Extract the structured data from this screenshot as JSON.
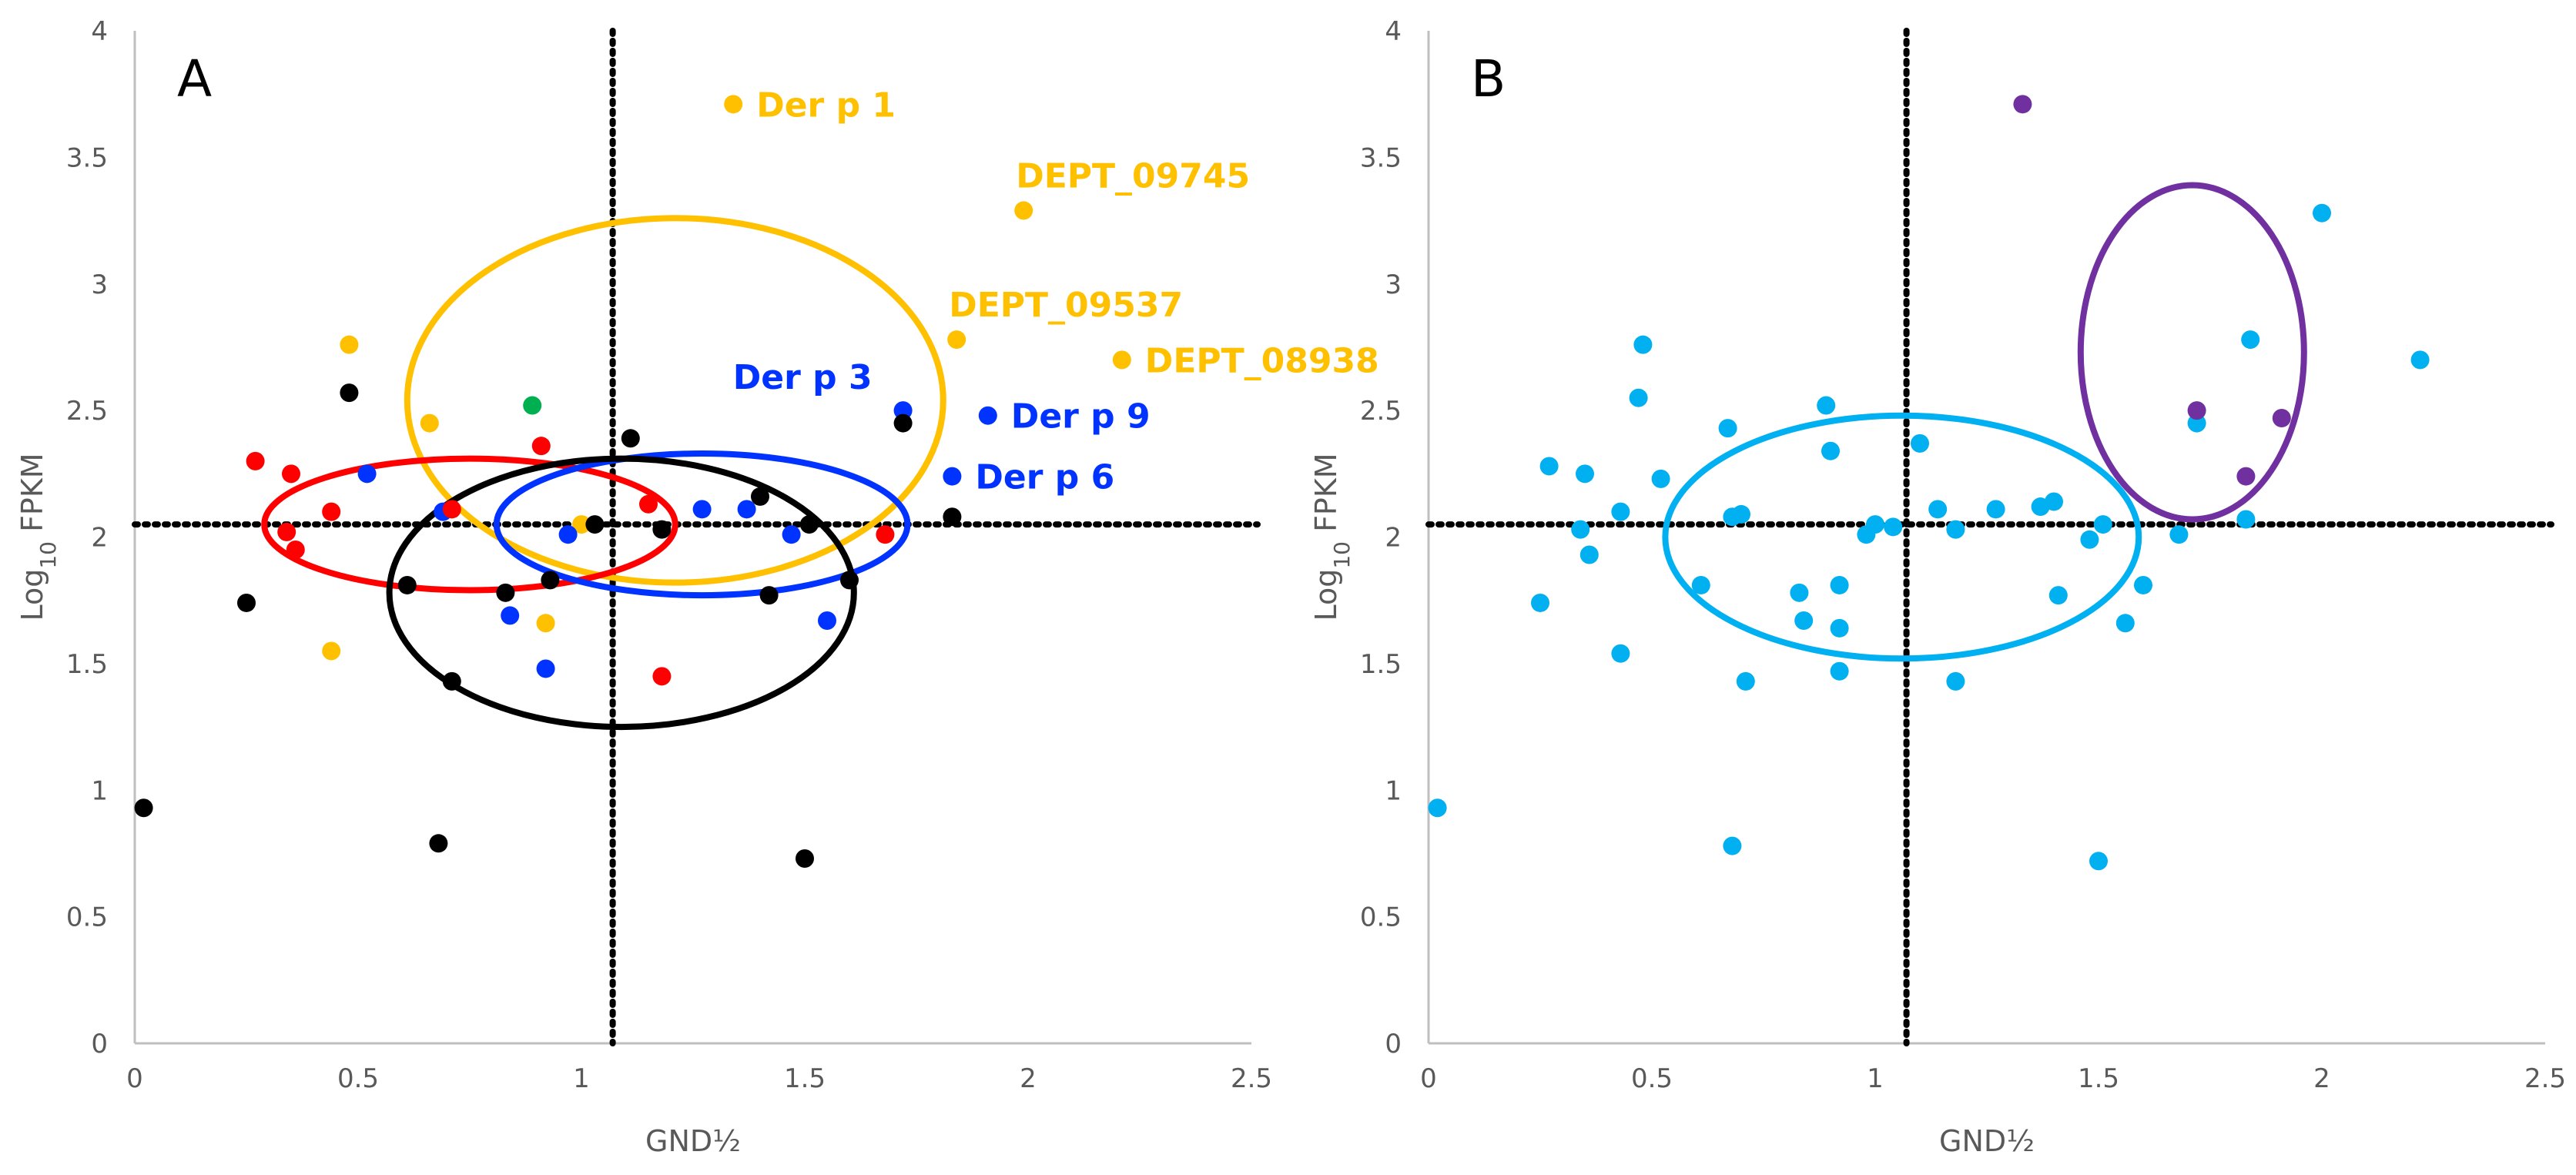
{
  "chart_data": [
    {
      "type": "scatter",
      "panel_label": "A",
      "xlabel": "GND½",
      "ylabel": "Log10 FPKM",
      "xlim": [
        0,
        2.5
      ],
      "ylim": [
        0,
        4
      ],
      "xticks": [
        "0",
        "0.5",
        "1",
        "1.5",
        "2",
        "2.5"
      ],
      "yticks": [
        "0",
        "0.5",
        "1",
        "1.5",
        "2",
        "2.5",
        "3",
        "3.5",
        "4"
      ],
      "grid": false,
      "reference_lines": {
        "x": 1.07,
        "y": 2.05
      },
      "colors": {
        "yellow": "#FFC000",
        "blue": "#0033FF",
        "red": "#FF0000",
        "black": "#000000",
        "green": "#00B050"
      },
      "series": [
        {
          "name": "yellow",
          "color": "#FFC000",
          "points": [
            [
              1.34,
              3.71
            ],
            [
              1.99,
              3.29
            ],
            [
              1.84,
              2.78
            ],
            [
              2.21,
              2.7
            ],
            [
              0.48,
              2.76
            ],
            [
              0.66,
              2.45
            ],
            [
              0.44,
              1.55
            ],
            [
              0.92,
              1.66
            ],
            [
              1.0,
              2.05
            ]
          ]
        },
        {
          "name": "blue",
          "color": "#0033FF",
          "points": [
            [
              1.72,
              2.5
            ],
            [
              1.91,
              2.48
            ],
            [
              1.83,
              2.24
            ],
            [
              0.52,
              2.25
            ],
            [
              0.69,
              2.1
            ],
            [
              0.97,
              2.01
            ],
            [
              1.27,
              2.11
            ],
            [
              1.37,
              2.11
            ],
            [
              1.47,
              2.01
            ],
            [
              0.84,
              1.69
            ],
            [
              0.92,
              1.48
            ],
            [
              1.55,
              1.67
            ]
          ]
        },
        {
          "name": "red",
          "color": "#FF0000",
          "points": [
            [
              0.27,
              2.3
            ],
            [
              0.35,
              2.25
            ],
            [
              0.44,
              2.1
            ],
            [
              0.34,
              2.02
            ],
            [
              0.36,
              1.95
            ],
            [
              0.71,
              2.11
            ],
            [
              0.91,
              2.36
            ],
            [
              1.15,
              2.13
            ],
            [
              1.68,
              2.01
            ],
            [
              1.18,
              1.45
            ]
          ]
        },
        {
          "name": "black",
          "color": "#000000",
          "points": [
            [
              0.48,
              2.57
            ],
            [
              1.11,
              2.39
            ],
            [
              1.72,
              2.45
            ],
            [
              1.83,
              2.08
            ],
            [
              1.4,
              2.16
            ],
            [
              1.51,
              2.05
            ],
            [
              1.03,
              2.05
            ],
            [
              1.18,
              2.03
            ],
            [
              0.61,
              1.81
            ],
            [
              0.83,
              1.78
            ],
            [
              0.93,
              1.83
            ],
            [
              1.42,
              1.77
            ],
            [
              1.6,
              1.83
            ],
            [
              0.25,
              1.74
            ],
            [
              0.71,
              1.43
            ],
            [
              0.02,
              0.93
            ],
            [
              0.68,
              0.79
            ],
            [
              1.5,
              0.73
            ]
          ]
        },
        {
          "name": "green",
          "color": "#00B050",
          "points": [
            [
              0.89,
              2.52
            ]
          ]
        }
      ],
      "ellipses": [
        {
          "color": "#FFC000",
          "cx": 1.21,
          "cy": 2.54,
          "rx": 0.6,
          "ry": 0.72
        },
        {
          "color": "#FF0000",
          "cx": 0.75,
          "cy": 2.05,
          "rx": 0.46,
          "ry": 0.26
        },
        {
          "color": "#0033FF",
          "cx": 1.27,
          "cy": 2.05,
          "rx": 0.46,
          "ry": 0.28
        },
        {
          "color": "#000000",
          "cx": 1.09,
          "cy": 1.78,
          "rx": 0.52,
          "ry": 0.53
        }
      ],
      "annotations": [
        {
          "text": "Der p 1",
          "x": 1.34,
          "y": 3.71,
          "color": "#FFC000",
          "anchor": "right"
        },
        {
          "text": "DEPT_09745",
          "x": 1.99,
          "y": 3.29,
          "color": "#FFC000",
          "anchor": "above"
        },
        {
          "text": "DEPT_09537",
          "x": 1.84,
          "y": 2.78,
          "color": "#FFC000",
          "anchor": "above"
        },
        {
          "text": "DEPT_08938",
          "x": 2.21,
          "y": 2.7,
          "color": "#FFC000",
          "anchor": "right"
        },
        {
          "text": "Der p 3",
          "x": 1.72,
          "y": 2.5,
          "color": "#0033FF",
          "anchor": "above-left"
        },
        {
          "text": "Der p 9",
          "x": 1.91,
          "y": 2.48,
          "color": "#0033FF",
          "anchor": "right"
        },
        {
          "text": "Der p 6",
          "x": 1.83,
          "y": 2.24,
          "color": "#0033FF",
          "anchor": "right"
        }
      ]
    },
    {
      "type": "scatter",
      "panel_label": "B",
      "xlabel": "GND½",
      "ylabel": "Log10 FPKM",
      "xlim": [
        0,
        2.5
      ],
      "ylim": [
        0,
        4
      ],
      "xticks": [
        "0",
        "0.5",
        "1",
        "1.5",
        "2",
        "2.5"
      ],
      "yticks": [
        "0",
        "0.5",
        "1",
        "1.5",
        "2",
        "2.5",
        "3",
        "3.5",
        "4"
      ],
      "grid": false,
      "reference_lines": {
        "x": 1.07,
        "y": 2.05
      },
      "colors": {
        "cyan": "#00B0F0",
        "purple": "#7030A0"
      },
      "series": [
        {
          "name": "cyan",
          "color": "#00B0F0",
          "points": [
            [
              2.0,
              3.28
            ],
            [
              1.84,
              2.78
            ],
            [
              2.22,
              2.7
            ],
            [
              0.48,
              2.76
            ],
            [
              0.47,
              2.55
            ],
            [
              1.72,
              2.45
            ],
            [
              0.27,
              2.28
            ],
            [
              0.35,
              2.25
            ],
            [
              0.52,
              2.23
            ],
            [
              0.67,
              2.43
            ],
            [
              0.89,
              2.52
            ],
            [
              0.9,
              2.34
            ],
            [
              1.1,
              2.37
            ],
            [
              0.34,
              2.03
            ],
            [
              0.43,
              2.1
            ],
            [
              0.36,
              1.93
            ],
            [
              0.68,
              2.08
            ],
            [
              0.7,
              2.09
            ],
            [
              0.98,
              2.01
            ],
            [
              1.0,
              2.05
            ],
            [
              1.04,
              2.04
            ],
            [
              1.14,
              2.11
            ],
            [
              1.18,
              2.03
            ],
            [
              1.27,
              2.11
            ],
            [
              1.37,
              2.12
            ],
            [
              1.4,
              2.14
            ],
            [
              1.48,
              1.99
            ],
            [
              1.51,
              2.05
            ],
            [
              1.68,
              2.01
            ],
            [
              1.83,
              2.07
            ],
            [
              0.61,
              1.81
            ],
            [
              0.83,
              1.78
            ],
            [
              0.92,
              1.81
            ],
            [
              1.41,
              1.77
            ],
            [
              1.6,
              1.81
            ],
            [
              0.25,
              1.74
            ],
            [
              0.84,
              1.67
            ],
            [
              0.92,
              1.64
            ],
            [
              1.56,
              1.66
            ],
            [
              0.43,
              1.54
            ],
            [
              0.92,
              1.47
            ],
            [
              0.71,
              1.43
            ],
            [
              1.18,
              1.43
            ],
            [
              0.02,
              0.93
            ],
            [
              0.68,
              0.78
            ],
            [
              1.5,
              0.72
            ]
          ]
        },
        {
          "name": "purple",
          "color": "#7030A0",
          "points": [
            [
              1.33,
              3.71
            ],
            [
              1.72,
              2.5
            ],
            [
              1.91,
              2.47
            ],
            [
              1.83,
              2.24
            ]
          ]
        }
      ],
      "ellipses": [
        {
          "color": "#00B0F0",
          "cx": 1.06,
          "cy": 2.0,
          "rx": 0.53,
          "ry": 0.48
        },
        {
          "color": "#7030A0",
          "cx": 1.71,
          "cy": 2.73,
          "rx": 0.25,
          "ry": 0.66
        }
      ],
      "annotations": []
    }
  ]
}
